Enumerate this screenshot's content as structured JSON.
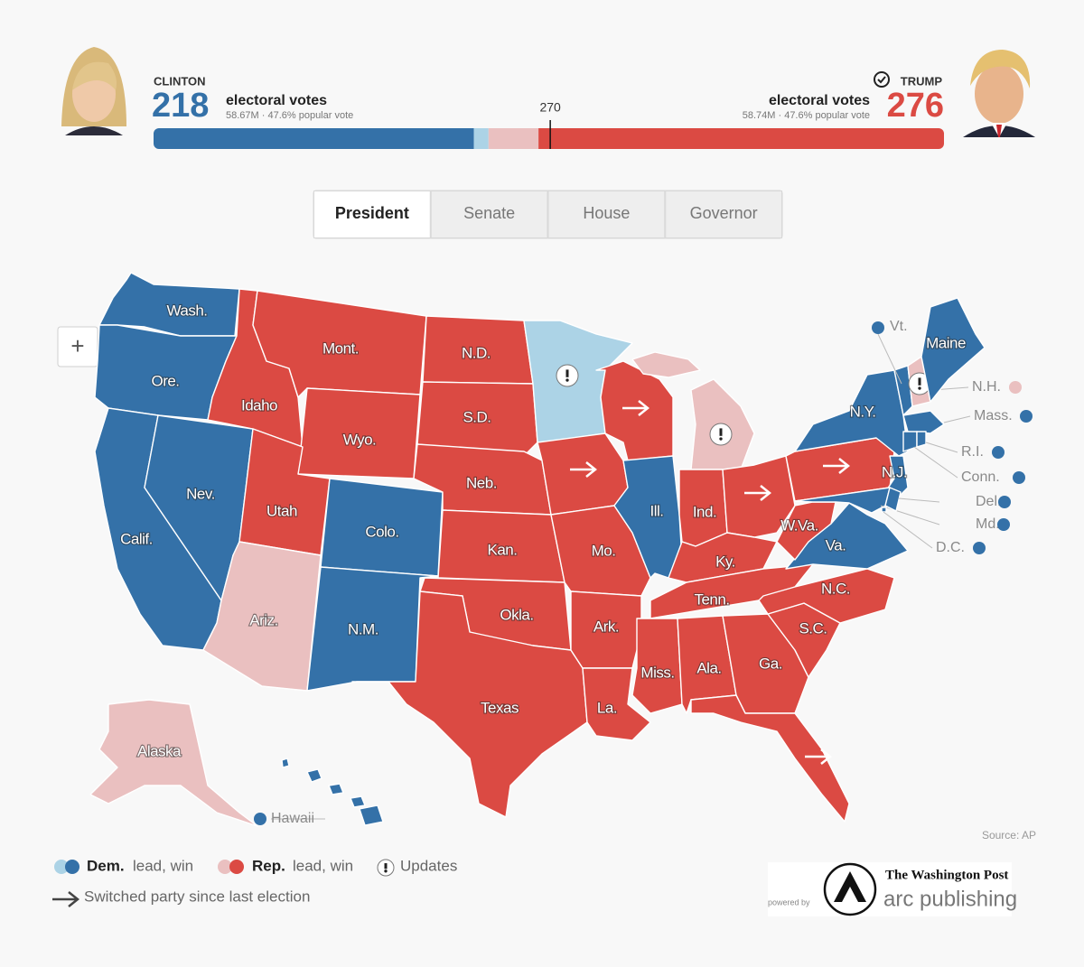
{
  "header": {
    "candidates": [
      {
        "name": "CLINTON",
        "electoral_votes": 218,
        "leading_votes": 10,
        "votes_label": "electoral votes",
        "popular_vote": "58.67M · 47.6% popular vote",
        "winner": false,
        "color": "#3471a8",
        "lead_color": "#acd3e6"
      },
      {
        "name": "TRUMP",
        "electoral_votes": 276,
        "leading_votes": 34,
        "votes_label": "electoral votes",
        "popular_vote": "58.74M · 47.6% popular vote",
        "winner": true,
        "color": "#db4a43",
        "lead_color": "#eac0c0"
      }
    ],
    "threshold": 270
  },
  "tabs": [
    "President",
    "Senate",
    "House",
    "Governor"
  ],
  "active_tab": 0,
  "zoom_button": "+",
  "map": {
    "status_colors": {
      "dem-win": "#3471a8",
      "dem-lead": "#acd3e6",
      "rep-lead": "#eac0c0",
      "rep-win": "#db4a43"
    },
    "states": [
      {
        "label": "Wash.",
        "status": "dem-win"
      },
      {
        "label": "Ore.",
        "status": "dem-win"
      },
      {
        "label": "Calif.",
        "status": "dem-win"
      },
      {
        "label": "Nev.",
        "status": "dem-win"
      },
      {
        "label": "Idaho",
        "status": "rep-win"
      },
      {
        "label": "Mont.",
        "status": "rep-win"
      },
      {
        "label": "Wyo.",
        "status": "rep-win"
      },
      {
        "label": "Utah",
        "status": "rep-win"
      },
      {
        "label": "Colo.",
        "status": "dem-win"
      },
      {
        "label": "Ariz.",
        "status": "rep-lead"
      },
      {
        "label": "N.M.",
        "status": "dem-win"
      },
      {
        "label": "N.D.",
        "status": "rep-win"
      },
      {
        "label": "S.D.",
        "status": "rep-win"
      },
      {
        "label": "Neb.",
        "status": "rep-win"
      },
      {
        "label": "Kan.",
        "status": "rep-win"
      },
      {
        "label": "Okla.",
        "status": "rep-win"
      },
      {
        "label": "Texas",
        "status": "rep-win"
      },
      {
        "label": null,
        "status": "dem-lead",
        "marker": "update"
      },
      {
        "label": null,
        "status": "rep-win",
        "marker": "switched"
      },
      {
        "label": "Mo.",
        "status": "rep-win"
      },
      {
        "label": "Ark.",
        "status": "rep-win"
      },
      {
        "label": "La.",
        "status": "rep-win"
      },
      {
        "label": null,
        "status": "rep-win",
        "marker": "switched"
      },
      {
        "label": "Ill.",
        "status": "dem-win"
      },
      {
        "label": null,
        "status": "rep-lead",
        "marker": "update"
      },
      {
        "label": "Ind.",
        "status": "rep-win"
      },
      {
        "label": null,
        "status": "rep-win",
        "marker": "switched"
      },
      {
        "label": "Ky.",
        "status": "rep-win"
      },
      {
        "label": "Tenn.",
        "status": "rep-win"
      },
      {
        "label": "Miss.",
        "status": "rep-win"
      },
      {
        "label": "Ala.",
        "status": "rep-win"
      },
      {
        "label": "Ga.",
        "status": "rep-win"
      },
      {
        "label": null,
        "status": "rep-win",
        "marker": "switched"
      },
      {
        "label": "S.C.",
        "status": "rep-win"
      },
      {
        "label": "N.C.",
        "status": "rep-win"
      },
      {
        "label": "Va.",
        "status": "dem-win"
      },
      {
        "label": "W.Va.",
        "status": "rep-win"
      },
      {
        "label": null,
        "status": "rep-win",
        "marker": "switched"
      },
      {
        "label": "N.Y.",
        "status": "dem-win"
      },
      {
        "label": "N.J.",
        "status": "dem-win"
      },
      {
        "label": "Md.",
        "status": "dem-win",
        "callout": true
      },
      {
        "label": "Del.",
        "status": "dem-win",
        "callout": true
      },
      {
        "label": "Vt.",
        "status": "dem-win",
        "callout": true
      },
      {
        "label": "N.H.",
        "status": "rep-lead",
        "callout": true,
        "marker": "update"
      },
      {
        "label": "Maine",
        "status": "dem-win"
      },
      {
        "label": "Mass.",
        "status": "dem-win",
        "callout": true
      },
      {
        "label": "Conn.",
        "status": "dem-win",
        "callout": true
      },
      {
        "label": "R.I.",
        "status": "dem-win",
        "callout": true
      },
      {
        "label": "D.C.",
        "status": "dem-win",
        "callout": true
      },
      {
        "label": "Alaska",
        "status": "rep-lead"
      },
      {
        "label": "Hawaii",
        "status": "dem-win",
        "callout": true
      }
    ]
  },
  "legend": {
    "dem": "Dem.",
    "dem_text": "lead, win",
    "rep": "Rep.",
    "rep_text": "lead, win",
    "updates": "Updates",
    "switched": "Switched party since last election"
  },
  "source": "Source: AP",
  "branding": {
    "powered_by": "powered by",
    "publisher": "The Washington Post",
    "product": "arc publishing"
  }
}
